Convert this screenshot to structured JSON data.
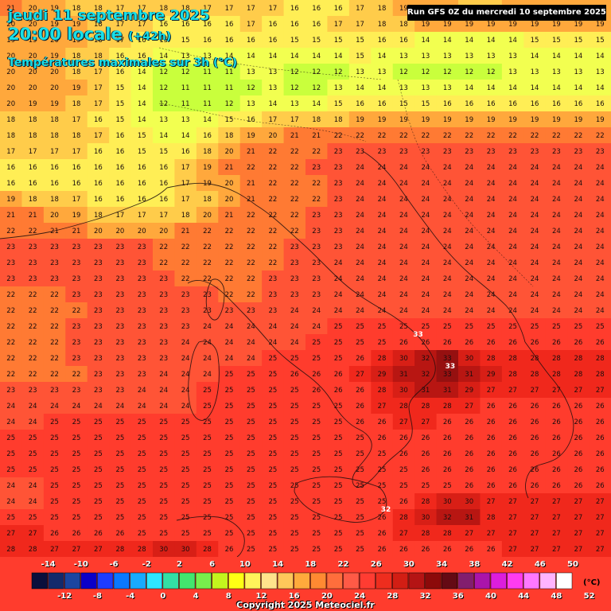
{
  "title": {
    "date": "jeudi 11 septembre 2025",
    "time": "20:00 locale",
    "lead": "(+42h)",
    "subtitle": "Températures maximales sur 3h (°C)"
  },
  "run_label": "Run GFS 0Z du mercredi 10 septembre 2025",
  "copyright": "Copyright 2025 Meteociel.fr",
  "legend": {
    "unit": "(°C)",
    "top_ticks": [
      "-14",
      "-10",
      "-6",
      "-2",
      "2",
      "6",
      "10",
      "14",
      "18",
      "22",
      "26",
      "30",
      "34",
      "38",
      "42",
      "46",
      "50"
    ],
    "bottom_ticks": [
      "-12",
      "-8",
      "-4",
      "0",
      "4",
      "8",
      "12",
      "16",
      "20",
      "24",
      "28",
      "32",
      "36",
      "40",
      "44",
      "48",
      "52"
    ],
    "colors": [
      "#0a0f3c",
      "#132a6b",
      "#1b45a0",
      "#0a00c8",
      "#1e3cff",
      "#0a78ff",
      "#19aaff",
      "#2ee6ff",
      "#33e0a5",
      "#42e66e",
      "#78ee4c",
      "#c3f51e",
      "#ffff14",
      "#fff35a",
      "#ffe38c",
      "#ffc75a",
      "#ffaa3c",
      "#ff8a32",
      "#ff6e3c",
      "#ff5a46",
      "#ff3c32",
      "#ee2d1e",
      "#d21e14",
      "#b41414",
      "#8c0a0a",
      "#640a14",
      "#821e6e",
      "#aa14aa",
      "#dc1edc",
      "#ff3cf0",
      "#ff78ff",
      "#ffb4ff",
      "#ffffff"
    ]
  },
  "map": {
    "color_ramp": [
      {
        "t": 11,
        "color": "#c9ff3c"
      },
      {
        "t": 13,
        "color": "#f2ff50"
      },
      {
        "t": 15,
        "color": "#ffee55"
      },
      {
        "t": 17,
        "color": "#ffcc4a"
      },
      {
        "t": 19,
        "color": "#ffa83c"
      },
      {
        "t": 21,
        "color": "#ff7a33"
      },
      {
        "t": 23,
        "color": "#ff5436"
      },
      {
        "t": 25,
        "color": "#ff3c2d"
      },
      {
        "t": 27,
        "color": "#f0281c"
      },
      {
        "t": 29,
        "color": "#d81f16"
      },
      {
        "t": 31,
        "color": "#b81612"
      },
      {
        "t": 33,
        "color": "#961010"
      }
    ],
    "grid_rows": [
      "21 20 19 18 18 17 17 18 18 17 17 17 17 16 16 16 17 18 19 20 19 18 18 19 19 19 19 19",
      "20 20 19 19 18 17 17 16 16 16 16 17 16 16 16 17 17 18 18 19 19 19 19 19 19 19 19 19",
      "19 19 20 19 18 17 16 15 15 16 16 16 16 15 15 15 15 16 16 14 14 14 14 14 15 15 15 15",
      "20 20 19 18 18 16 16 14 13 13 14 14 14 14 14 14 15 14 13 13 13 13 13 13 14 14 14 14",
      "20 20 20 18 17 16 14 12 12 11 11 13 13 12 12 12 13 13 12 12 12 12 12 13 13 13 13 13",
      "20 20 20 19 17 15 14 12 11 11 11 12 13 12 12 13 14 14 13 13 13 14 14 14 14 14 14 14",
      "20 19 19 18 17 15 14 12 11 11 12 13 14 13 14 15 16 16 15 15 16 16 16 16 16 16 16 16",
      "18 18 18 17 16 15 14 13 13 14 15 16 17 17 18 18 19 19 19 19 19 19 19 19 19 19 19 19",
      "18 18 18 18 17 16 15 14 14 16 18 19 20 21 21 22 22 22 22 22 22 22 22 22 22 22 22 22",
      "17 17 17 17 16 16 15 15 16 18 20 21 22 22 22 23 23 23 23 23 23 23 23 23 23 23 23 23",
      "16 16 16 16 16 16 16 16 17 19 21 22 22 22 23 23 24 24 24 24 24 24 24 24 24 24 24 24",
      "16 16 16 16 16 16 16 16 17 19 20 21 22 22 22 23 24 24 24 24 24 24 24 24 24 24 24 24",
      "19 18 18 17 16 16 16 16 17 18 20 21 22 22 22 23 24 24 24 24 24 24 24 24 24 24 24 24",
      "21 21 20 19 18 17 17 17 18 20 21 22 22 22 23 23 24 24 24 24 24 24 24 24 24 24 24 24",
      "22 22 21 21 20 20 20 20 21 22 22 22 22 22 23 23 24 24 24 24 24 24 24 24 24 24 24 24",
      "23 23 23 23 23 23 23 22 22 22 22 22 22 23 23 23 24 24 24 24 24 24 24 24 24 24 24 24",
      "23 23 23 23 23 23 23 22 22 22 22 22 22 23 23 24 24 24 24 24 24 24 24 24 24 24 24 24",
      "23 23 23 23 23 23 23 23 22 22 22 22 23 23 23 24 24 24 24 24 24 24 24 24 24 24 24 24",
      "22 22 22 23 23 23 23 23 23 23 22 22 23 23 23 24 24 24 24 24 24 24 24 24 24 24 24 24",
      "22 22 22 22 23 23 23 23 23 23 23 23 23 24 24 24 24 24 24 24 24 24 24 24 24 24 24 24",
      "22 22 22 23 23 23 23 23 23 24 24 24 24 24 24 25 25 25 25 25 25 25 25 25 25 25 25 25",
      "22 22 22 23 23 23 23 23 24 24 24 24 24 24 25 25 25 25 26 26 26 26 26 26 26 26 26 26",
      "22 22 22 23 23 23 23 23 24 24 24 24 25 25 25 25 26 28 30 32 33 30 28 28 28 28 28 28",
      "22 22 22 22 23 23 23 24 24 24 25 25 25 26 26 26 27 29 31 32 33 31 29 28 28 28 28 28",
      "23 23 23 23 23 23 24 24 24 25 25 25 25 25 26 26 26 28 30 31 31 29 27 27 27 27 27 27",
      "24 24 24 24 24 24 24 24 24 25 25 25 25 25 25 25 26 27 28 28 28 27 26 26 26 26 26 26",
      "24 24 25 25 25 25 25 25 25 25 25 25 25 25 25 25 26 26 27 27 26 26 26 26 26 26 26 26",
      "25 25 25 25 25 25 25 25 25 25 25 25 25 25 25 25 25 26 26 26 26 26 26 26 26 26 26 26",
      "25 25 25 25 25 25 25 25 25 25 25 25 25 25 25 25 25 25 26 26 26 26 26 26 26 26 26 26",
      "25 25 25 25 25 25 25 25 25 25 25 25 25 25 25 25 25 25 25 26 26 26 26 26 26 26 26 26",
      "24 24 25 25 25 25 25 25 25 25 25 25 25 25 25 25 25 25 25 25 25 26 26 26 26 26 26 26",
      "24 24 25 25 25 25 25 25 25 25 25 25 25 25 25 25 25 25 26 28 30 30 27 27 27 27 27 27",
      "25 25 25 25 25 25 25 25 25 25 25 25 25 25 25 25 25 26 28 30 32 31 28 27 27 27 27 27",
      "27 27 26 26 26 26 25 25 25 25 25 25 25 25 25 25 25 26 27 28 28 27 27 27 27 27 27 27",
      "28 28 27 27 27 28 28 30 30 28 26 25 25 25 25 25 25 26 26 26 26 26 26 27 27 27 27 27"
    ],
    "markers": [
      {
        "label": "33",
        "row": 21,
        "col": 26
      },
      {
        "label": "33",
        "row": 23,
        "col": 28
      },
      {
        "label": "32",
        "row": 32,
        "col": 24
      }
    ]
  }
}
